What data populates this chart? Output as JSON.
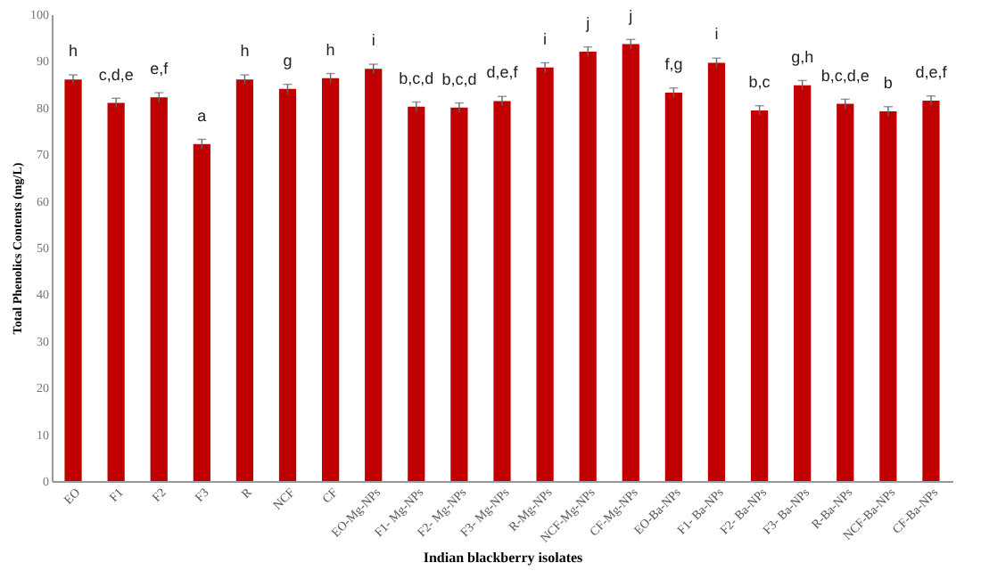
{
  "chart_data": {
    "type": "bar",
    "xlabel": "Indian blackberry  isolates",
    "ylabel": "Total Phenolics Contents (mg/L)",
    "categories": [
      "EO",
      "F1",
      "F2",
      "F3",
      "R",
      "NCF",
      "CF",
      "EO-Mg-NPs",
      "F1- Mg-NPs",
      "F2- Mg-NPs",
      "F3- Mg-NPs",
      "R-Mg-NPs",
      "NCF-Mg-NPs",
      "CF-Mg-NPs",
      "EO-Ba-NPs",
      "F1- Ba-NPs",
      "F2- Ba-NPs",
      "F3- Ba-NPs",
      "R-Ba-NPs",
      "NCF-Ba-NPs",
      "CF-Ba-NPs"
    ],
    "series": [
      {
        "color": "#c00000",
        "values": [
          86,
          81,
          82.2,
          72.2,
          86,
          84,
          86.3,
          88.3,
          80.2,
          80,
          81.4,
          88.6,
          92,
          93.6,
          83.2,
          89.6,
          79.4,
          84.8,
          80.8,
          79.2,
          81.5
        ],
        "errors": [
          1,
          1,
          1,
          1,
          1,
          1,
          1,
          1,
          1,
          1,
          1,
          1,
          1,
          1,
          1,
          1,
          1,
          1,
          1,
          1,
          1
        ]
      }
    ],
    "ylim": [
      0,
      100
    ],
    "yticks": [
      0,
      10,
      20,
      30,
      40,
      50,
      60,
      70,
      80,
      90,
      100
    ],
    "grid": false,
    "annotations": [
      {
        "text": "h",
        "x": "EO",
        "y": 86
      },
      {
        "text": "c,d,e",
        "x": "F1",
        "y": 81
      },
      {
        "text": "e,f",
        "x": "F2",
        "y": 82.2
      },
      {
        "text": "a",
        "x": "F3",
        "y": 72.2
      },
      {
        "text": "h",
        "x": "R",
        "y": 86
      },
      {
        "text": "g",
        "x": "NCF",
        "y": 84
      },
      {
        "text": "h",
        "x": "CF",
        "y": 86.3
      },
      {
        "text": "i",
        "x": "EO-Mg-NPs",
        "y": 88.3
      },
      {
        "text": "b,c,d",
        "x": "F1- Mg-NPs",
        "y": 80.2
      },
      {
        "text": "b,c,d",
        "x": "F2- Mg-NPs",
        "y": 80
      },
      {
        "text": "d,e,f",
        "x": "F3- Mg-NPs",
        "y": 81.4
      },
      {
        "text": "i",
        "x": "R-Mg-NPs",
        "y": 88.6
      },
      {
        "text": "j",
        "x": "NCF-Mg-NPs",
        "y": 92
      },
      {
        "text": "j",
        "x": "CF-Mg-NPs",
        "y": 93.6
      },
      {
        "text": "f,g",
        "x": "EO-Ba-NPs",
        "y": 83.2
      },
      {
        "text": "i",
        "x": "F1- Ba-NPs",
        "y": 89.6
      },
      {
        "text": "b,c",
        "x": "F2- Ba-NPs",
        "y": 79.4
      },
      {
        "text": "g,h",
        "x": "F3- Ba-NPs",
        "y": 84.8
      },
      {
        "text": "b,c,d,e",
        "x": "R-Ba-NPs",
        "y": 80.8
      },
      {
        "text": "b",
        "x": "NCF-Ba-NPs",
        "y": 79.2
      },
      {
        "text": "d,e,f",
        "x": "CF-Ba-NPs",
        "y": 81.5
      }
    ]
  }
}
